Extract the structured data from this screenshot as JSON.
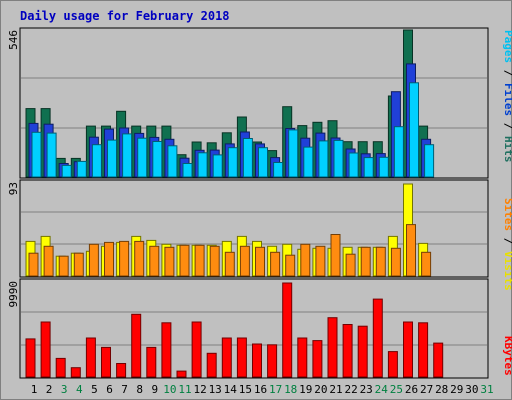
{
  "chart_data": {
    "type": "bar",
    "title": "Daily usage for February 2018",
    "x": [
      "1",
      "2",
      "3",
      "4",
      "5",
      "6",
      "7",
      "8",
      "9",
      "10",
      "11",
      "12",
      "13",
      "14",
      "15",
      "16",
      "17",
      "18",
      "19",
      "20",
      "21",
      "22",
      "23",
      "24",
      "25",
      "26",
      "27",
      "28",
      "29",
      "30",
      "31"
    ],
    "weekend_days": [
      3,
      4,
      10,
      11,
      17,
      18,
      24,
      25,
      31
    ],
    "panels": [
      {
        "ymax_label": "546",
        "ymax": 546,
        "legend": [
          {
            "text": "Pages",
            "color": "#00c0f0"
          },
          {
            "text": " / ",
            "color": "#000000"
          },
          {
            "text": "Files",
            "color": "#0040d0"
          },
          {
            "text": " / ",
            "color": "#000000"
          },
          {
            "text": "Hits",
            "color": "#207060"
          }
        ],
        "series": [
          {
            "name": "Hits",
            "color": "#107050",
            "values": [
              254,
              254,
              69,
              69,
              189,
              189,
              244,
              189,
              189,
              189,
              83,
              130,
              127,
              164,
              223,
              130,
              98,
              261,
              191,
              203,
              209,
              131,
              131,
              131,
              301,
              546,
              189,
              0,
              0,
              0,
              0
            ]
          },
          {
            "name": "Files",
            "color": "#2040d8",
            "values": [
              199,
              196,
              50,
              57,
              148,
              178,
              182,
              162,
              147,
              140,
              70,
              99,
              100,
              123,
              167,
              123,
              72,
              180,
              144,
              163,
              145,
              104,
              86,
              87,
              317,
              420,
              140,
              0,
              0,
              0,
              0
            ]
          },
          {
            "name": "Pages",
            "color": "#00d0ff",
            "values": [
              166,
              163,
              43,
              58,
              120,
              137,
              160,
              144,
              132,
              116,
              50,
              90,
              82,
              109,
              143,
              109,
              54,
              175,
              111,
              134,
              136,
              89,
              72,
              73,
              187,
              350,
              120,
              0,
              0,
              0,
              0
            ]
          }
        ]
      },
      {
        "ymax_label": "93",
        "ymax": 93,
        "legend": [
          {
            "text": "Sites",
            "color": "#ff8000"
          },
          {
            "text": " / ",
            "color": "#000000"
          },
          {
            "text": "Visits",
            "color": "#e8e000"
          }
        ],
        "series": [
          {
            "name": "Visits",
            "color": "#ffff00",
            "values": [
              35,
              40,
              20,
              23,
              25,
              30,
              34,
              40,
              36,
              32,
              31,
              31,
              31,
              35,
              40,
              35,
              30,
              32,
              27,
              28,
              28,
              29,
              29,
              29,
              40,
              93,
              33,
              0,
              0,
              0,
              0
            ]
          },
          {
            "name": "Sites",
            "color": "#ff8c10",
            "values": [
              23,
              30,
              20,
              23,
              32,
              34,
              35,
              35,
              30,
              29,
              31,
              31,
              30,
              24,
              30,
              29,
              24,
              21,
              32,
              30,
              42,
              22,
              29,
              29,
              28,
              52,
              24,
              0,
              0,
              0,
              0
            ]
          }
        ]
      },
      {
        "ymax_label": "9990",
        "ymax": 9990,
        "legend": [
          {
            "text": "KBytes",
            "color": "#ff0000"
          }
        ],
        "series": [
          {
            "name": "KBytes",
            "color": "#ff0000",
            "values": [
              4050,
              5850,
              1980,
              990,
              4140,
              3150,
              1440,
              6660,
              3150,
              5760,
              630,
              5850,
              2520,
              4140,
              4140,
              3510,
              3420,
              9990,
              4140,
              3870,
              6300,
              5580,
              5400,
              8280,
              2700,
              5850,
              5760,
              3600,
              0,
              0,
              0
            ]
          }
        ]
      }
    ]
  }
}
